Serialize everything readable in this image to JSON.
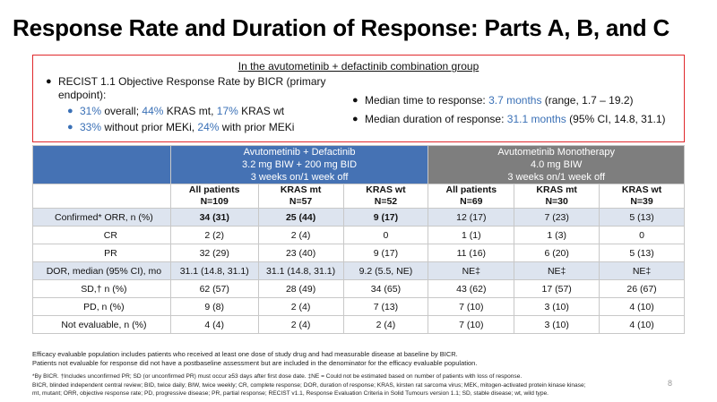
{
  "title": "Response Rate and Duration of Response: Parts A, B, and C",
  "box": {
    "heading": "In the avutometinib + defactinib combination group",
    "left_bullet": "RECIST 1.1 Objective Response Rate by BICR (primary endpoint):",
    "sub1": {
      "v1": "31%",
      "t1": " overall; ",
      "v2": "44%",
      "t2": " KRAS mt, ",
      "v3": "17%",
      "t3": " KRAS wt"
    },
    "sub2": {
      "v1": "33%",
      "t1": " without prior MEKi, ",
      "v2": "24%",
      "t2": " with prior MEKi"
    },
    "right1": {
      "t1": "Median time to response: ",
      "v": "3.7 months",
      "t2": " (range, 1.7 – 19.2)"
    },
    "right2": {
      "t1": "Median duration of response: ",
      "v": "31.1 months",
      "t2": " (95% CI, 14.8, 31.1)"
    }
  },
  "table": {
    "groupA": {
      "l1": "Avutometinib + Defactinib",
      "l2": "3.2 mg BIW + 200 mg BID",
      "l3": "3 weeks on/1 week off"
    },
    "groupB": {
      "l1": "Avutometinib Monotherapy",
      "l2": "4.0 mg BIW",
      "l3": "3 weeks on/1 week off"
    },
    "columns": [
      {
        "name": "All patients",
        "n": "N=109"
      },
      {
        "name": "KRAS mt",
        "n": "N=57"
      },
      {
        "name": "KRAS wt",
        "n": "N=52"
      },
      {
        "name": "All patients",
        "n": "N=69"
      },
      {
        "name": "KRAS mt",
        "n": "N=30"
      },
      {
        "name": "KRAS wt",
        "n": "N=39"
      }
    ],
    "rows": [
      {
        "label": "Confirmed* ORR, n (%)",
        "cells": [
          "34 (31)",
          "25 (44)",
          "9 (17)",
          "12 (17)",
          "7 (23)",
          "5 (13)"
        ]
      },
      {
        "label": "CR",
        "cells": [
          "2 (2)",
          "2 (4)",
          "0",
          "1 (1)",
          "1 (3)",
          "0"
        ]
      },
      {
        "label": "PR",
        "cells": [
          "32 (29)",
          "23 (40)",
          "9 (17)",
          "11 (16)",
          "6 (20)",
          "5 (13)"
        ]
      },
      {
        "label": "DOR, median (95% CI), mo",
        "cells": [
          "31.1 (14.8, 31.1)",
          "31.1 (14.8, 31.1)",
          "9.2 (5.5, NE)",
          "NE‡",
          "NE‡",
          "NE‡"
        ]
      },
      {
        "label": "SD,† n (%)",
        "cells": [
          "62 (57)",
          "28 (49)",
          "34 (65)",
          "43 (62)",
          "17 (57)",
          "26 (67)"
        ]
      },
      {
        "label": "PD, n (%)",
        "cells": [
          "9 (8)",
          "2 (4)",
          "7 (13)",
          "7 (10)",
          "3 (10)",
          "4 (10)"
        ]
      },
      {
        "label": "Not evaluable, n (%)",
        "cells": [
          "4 (4)",
          "2 (4)",
          "2 (4)",
          "7 (10)",
          "3 (10)",
          "4 (10)"
        ]
      }
    ]
  },
  "footnotes": {
    "f1": "Efficacy evaluable population includes patients who received at least one dose of study drug and had measurable disease at baseline by BICR.",
    "f2": "Patients not evaluable for response did not have a postbaseline assessment but are included in the denominator for the efficacy evaluable population.",
    "f3": "*By BICR. †Includes unconfirmed PR; SD (or unconfirmed PR) must occur ≥53 days after first dose date. ‡NE = Could not be estimated based on number of patients with loss of response.",
    "f4": "BICR, blinded independent central review; BID, twice daily; BIW, twice weekly; CR, complete response; DOR, duration of response; KRAS, kirsten rat sarcoma virus; MEK, mitogen-activated protein kinase kinase;",
    "f5": "mt, mutant; ORR, objective response rate; PD, progressive disease; PR, partial response; RECIST v1.1, Response Evaluation Criteria in Solid Tumours version 1.1; SD, stable disease; wt, wild type."
  },
  "page_number": "8",
  "colors": {
    "accent_blue": "#3a70b6",
    "header_blue": "#4572b4",
    "header_gray": "#7e7e7e",
    "box_red": "#e0282c",
    "row_highlight": "#dde4ef"
  }
}
